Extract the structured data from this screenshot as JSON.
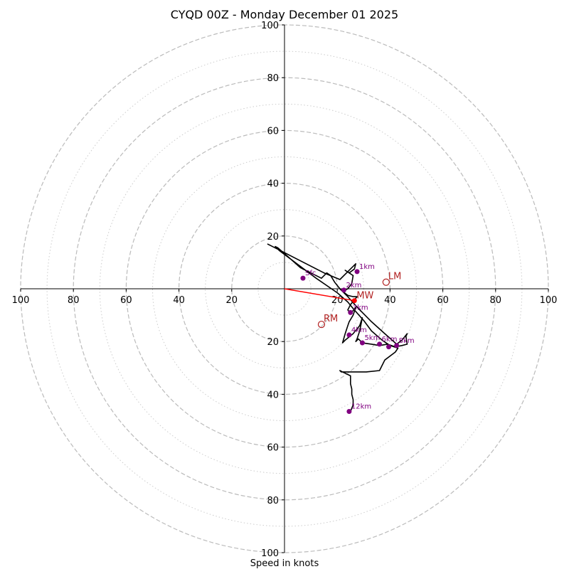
{
  "chart_data": {
    "type": "hodograph",
    "title": "CYQD 00Z - Monday December 01 2025",
    "xlabel": "Speed in knots",
    "units": "knots",
    "range": 100,
    "rings_major": [
      20,
      40,
      60,
      80,
      100
    ],
    "rings_minor": [
      10,
      30,
      50,
      70,
      90
    ],
    "tick_labels": {
      "top": [
        "100",
        "80",
        "60",
        "40",
        "20"
      ],
      "bottom": [
        "20",
        "40",
        "60",
        "80",
        "100"
      ],
      "left": [
        "100",
        "80",
        "60",
        "40",
        "20"
      ],
      "right": [
        "20",
        "40",
        "60",
        "80",
        "100"
      ]
    },
    "colors": {
      "trace": "#000000",
      "heights": "#800080",
      "motion": "#b22222",
      "mean_wind": "#ff0000",
      "grid": "#bbbbbb"
    },
    "trace": [
      [
        -6.5,
        17
      ],
      [
        15,
        6
      ],
      [
        21,
        3.5
      ],
      [
        27,
        9.5
      ],
      [
        26.5,
        7.5
      ],
      [
        24.5,
        6
      ],
      [
        23,
        7
      ],
      [
        26,
        5
      ],
      [
        25.5,
        2
      ],
      [
        24,
        0
      ],
      [
        22,
        -1
      ],
      [
        24,
        -2.5
      ],
      [
        26,
        -3
      ],
      [
        27.5,
        -3
      ],
      [
        25,
        -6
      ],
      [
        24,
        -8
      ],
      [
        25,
        -9.5
      ],
      [
        27,
        -7
      ],
      [
        26,
        -10
      ],
      [
        24.5,
        -12.5
      ],
      [
        24,
        -14
      ],
      [
        23,
        -17
      ],
      [
        22,
        -20.5
      ],
      [
        23,
        -19.5
      ],
      [
        26,
        -17
      ],
      [
        28.5,
        -14
      ],
      [
        29.5,
        -11
      ],
      [
        28.5,
        -16
      ],
      [
        27.5,
        -19
      ],
      [
        27,
        -20
      ],
      [
        28,
        -19
      ],
      [
        29.5,
        -20.5
      ],
      [
        33,
        -21
      ],
      [
        36,
        -21.5
      ],
      [
        39,
        -21
      ],
      [
        42,
        -22
      ],
      [
        44.5,
        -21.5
      ],
      [
        46.5,
        -21
      ],
      [
        46,
        -18
      ],
      [
        46.5,
        -17
      ],
      [
        44.5,
        -19.5
      ],
      [
        42.5,
        -21
      ],
      [
        38,
        -17
      ],
      [
        33,
        -12.5
      ],
      [
        28,
        -7.5
      ],
      [
        24,
        -3
      ],
      [
        21,
        0
      ],
      [
        19,
        2.5
      ],
      [
        17.5,
        5
      ],
      [
        16,
        6
      ],
      [
        14,
        4
      ],
      [
        6,
        8
      ],
      [
        1.5,
        12
      ],
      [
        -2.5,
        15.5
      ],
      [
        -3.5,
        16
      ],
      [
        -2,
        14.5
      ],
      [
        12,
        4
      ],
      [
        20,
        -1.5
      ],
      [
        24,
        -5
      ],
      [
        26,
        -7.5
      ],
      [
        30,
        -12
      ],
      [
        33,
        -16
      ],
      [
        37,
        -19.5
      ],
      [
        40,
        -21.5
      ],
      [
        43,
        -22.5
      ],
      [
        42,
        -24
      ],
      [
        38,
        -27
      ],
      [
        36,
        -31
      ],
      [
        31,
        -31.5
      ],
      [
        26,
        -31.5
      ],
      [
        21.5,
        -31.5
      ],
      [
        21,
        -31
      ],
      [
        22,
        -31.5
      ],
      [
        25,
        -33
      ],
      [
        25,
        -36
      ],
      [
        25.5,
        -38
      ],
      [
        25.5,
        -40
      ],
      [
        26,
        -42
      ],
      [
        26,
        -44
      ],
      [
        25,
        -46.5
      ]
    ],
    "heights": [
      {
        "label": "Sfc",
        "u": 7,
        "v": 4
      },
      {
        "label": "1km",
        "u": 27.5,
        "v": 6.5
      },
      {
        "label": "2km",
        "u": 22.5,
        "v": -0.5
      },
      {
        "label": "3km",
        "u": 25,
        "v": -9
      },
      {
        "label": "4km",
        "u": 24.5,
        "v": -17.5
      },
      {
        "label": "5km",
        "u": 29.5,
        "v": -20.5
      },
      {
        "label": "6km",
        "u": 36,
        "v": -21
      },
      {
        "label": "",
        "u": 39.5,
        "v": -22
      },
      {
        "label": "8km",
        "u": 42.5,
        "v": -21.5
      },
      {
        "label": "12km",
        "u": 24.5,
        "v": -46.5
      }
    ],
    "storm_motion": [
      {
        "label": "LM",
        "u": 38.5,
        "v": 2.5
      },
      {
        "label": "RM",
        "u": 14,
        "v": -13.5
      }
    ],
    "mean_wind": {
      "label": "MW",
      "u": 26.5,
      "v": -4.5
    }
  }
}
